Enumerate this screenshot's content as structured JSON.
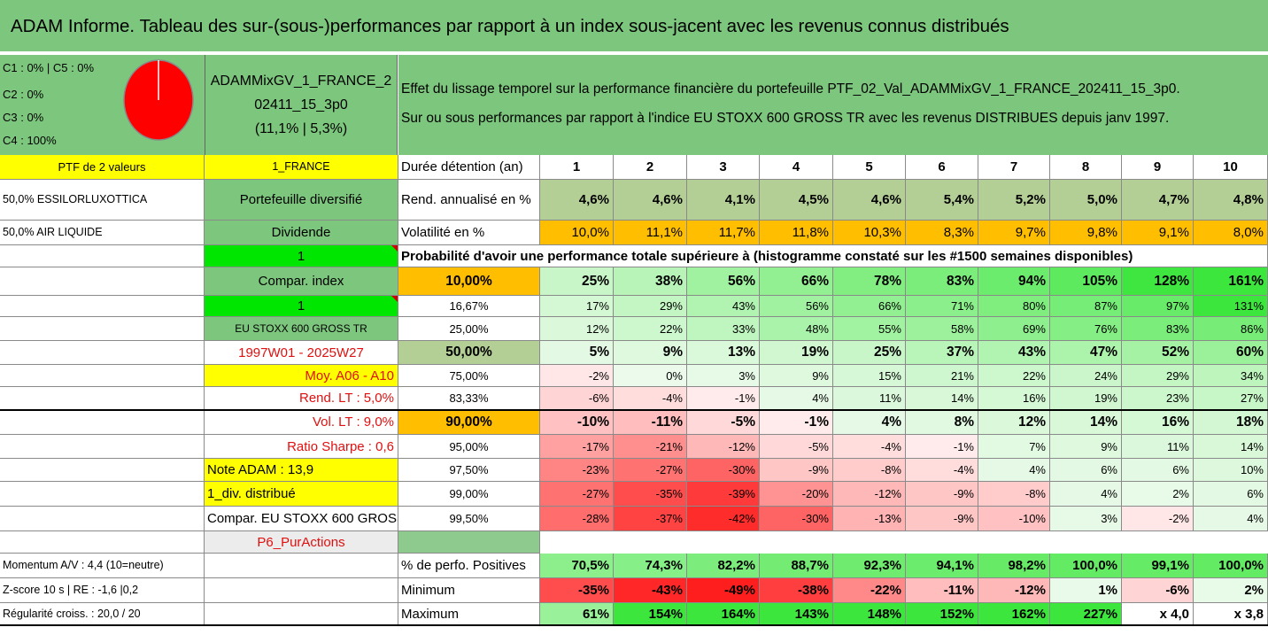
{
  "title": "ADAM Informe. Tableau des sur-(sous-)performances par rapport à un index sous-jacent avec les revenus connus distribués",
  "header_left": [
    "C1 : 0% | C5 : 0%",
    "C2 : 0%",
    "C3 : 0%",
    "C4 : 100%"
  ],
  "pie_color": "#ff0000",
  "portfolio_name_lines": [
    "ADAMMixGV_1_FRANCE_2",
    "02411_15_3p0",
    "(11,1% | 5,3%)"
  ],
  "description_lines": [
    "Effet du lissage temporel sur la performance financière du portefeuille PTF_02_Val_ADAMMixGV_1_FRANCE_202411_15_3p0.",
    "Sur ou sous performances par rapport à l'indice EU STOXX 600 GROSS TR avec les revenus DISTRIBUES depuis janv 1997."
  ],
  "colA": [
    "PTF de 2 valeurs",
    "50,0% ESSILORLUXOTTICA",
    "50,0% AIR LIQUIDE",
    "",
    "",
    "",
    "",
    "",
    "",
    "",
    "",
    "",
    "",
    "",
    "",
    "",
    "Momentum A/V : 4,4 (10=neutre)",
    "Z-score 10 s | RE : -1,6 |0,2",
    "Régularité croiss. : 20,0 / 20"
  ],
  "colB": [
    "1_FRANCE",
    "Portefeuille diversifié",
    "Dividende",
    "1",
    "Compar. index",
    "1",
    "EU STOXX 600 GROSS TR",
    "1997W01 - 2025W27",
    "Moy. A06 - A10",
    "Rend. LT : 5,0%",
    "Vol. LT : 9,0%",
    "Ratio Sharpe : 0,6",
    "Note ADAM : 13,9",
    "1_div. distribué",
    "Compar. EU STOXX 600 GROSS TR",
    "P6_PurActions",
    "",
    "",
    ""
  ],
  "stats_header": {
    "label": "Durée détention (an)",
    "years": [
      "1",
      "2",
      "3",
      "4",
      "5",
      "6",
      "7",
      "8",
      "9",
      "10"
    ]
  },
  "stats_rend": {
    "label": "Rend. annualisé en %",
    "values": [
      "4,6%",
      "4,6%",
      "4,1%",
      "4,5%",
      "4,6%",
      "5,4%",
      "5,2%",
      "5,0%",
      "4,7%",
      "4,8%"
    ]
  },
  "stats_vol": {
    "label": "Volatilité en %",
    "values": [
      "10,0%",
      "11,1%",
      "11,7%",
      "11,8%",
      "10,3%",
      "8,3%",
      "9,7%",
      "9,8%",
      "9,1%",
      "8,0%"
    ]
  },
  "prob_title": "Probabilité d'avoir une performance totale supérieure à (histogramme constaté sur les #1500 semaines disponibles)",
  "prob_rows": [
    {
      "label": "10,00%",
      "values": [
        "25%",
        "38%",
        "56%",
        "66%",
        "78%",
        "83%",
        "94%",
        "105%",
        "128%",
        "161%"
      ]
    },
    {
      "label": "16,67%",
      "values": [
        "17%",
        "29%",
        "43%",
        "56%",
        "66%",
        "71%",
        "80%",
        "87%",
        "97%",
        "131%"
      ]
    },
    {
      "label": "25,00%",
      "values": [
        "12%",
        "22%",
        "33%",
        "48%",
        "55%",
        "58%",
        "69%",
        "76%",
        "83%",
        "86%"
      ]
    },
    {
      "label": "50,00%",
      "values": [
        "5%",
        "9%",
        "13%",
        "19%",
        "25%",
        "37%",
        "43%",
        "47%",
        "52%",
        "60%"
      ]
    },
    {
      "label": "75,00%",
      "values": [
        "-2%",
        "0%",
        "3%",
        "9%",
        "15%",
        "21%",
        "22%",
        "24%",
        "29%",
        "34%"
      ]
    },
    {
      "label": "83,33%",
      "values": [
        "-6%",
        "-4%",
        "-1%",
        "4%",
        "11%",
        "14%",
        "16%",
        "19%",
        "23%",
        "27%"
      ]
    },
    {
      "label": "90,00%",
      "values": [
        "-10%",
        "-11%",
        "-5%",
        "-1%",
        "4%",
        "8%",
        "12%",
        "14%",
        "16%",
        "18%"
      ]
    },
    {
      "label": "95,00%",
      "values": [
        "-17%",
        "-21%",
        "-12%",
        "-5%",
        "-4%",
        "-1%",
        "7%",
        "9%",
        "11%",
        "14%"
      ]
    },
    {
      "label": "97,50%",
      "values": [
        "-23%",
        "-27%",
        "-30%",
        "-9%",
        "-8%",
        "-4%",
        "4%",
        "6%",
        "6%",
        "10%"
      ]
    },
    {
      "label": "99,00%",
      "values": [
        "-27%",
        "-35%",
        "-39%",
        "-20%",
        "-12%",
        "-9%",
        "-8%",
        "4%",
        "2%",
        "6%"
      ]
    },
    {
      "label": "99,50%",
      "values": [
        "-28%",
        "-37%",
        "-42%",
        "-30%",
        "-13%",
        "-9%",
        "-10%",
        "3%",
        "-2%",
        "4%"
      ]
    }
  ],
  "summary_rows": [
    {
      "label": "% de perfo. Positives",
      "values": [
        "70,5%",
        "74,3%",
        "82,2%",
        "88,7%",
        "92,3%",
        "94,1%",
        "98,2%",
        "100,0%",
        "99,1%",
        "100,0%"
      ]
    },
    {
      "label": "Minimum",
      "values": [
        "-35%",
        "-43%",
        "-49%",
        "-38%",
        "-22%",
        "-11%",
        "-12%",
        "1%",
        "-6%",
        "2%"
      ]
    },
    {
      "label": "Maximum",
      "values": [
        "61%",
        "154%",
        "164%",
        "143%",
        "148%",
        "152%",
        "162%",
        "227%",
        "x 4,0",
        "x 3,8"
      ]
    }
  ],
  "colors": {
    "title_green": "#7dc67d",
    "label_yellow": "#ffff00",
    "bright_green": "#00e600",
    "olive_green": "#b4cf96",
    "orange": "#ffbe00",
    "red_text": "#e01010",
    "soft_green": "#c8e3c0",
    "mid_grey_green": "#8ec98e"
  }
}
